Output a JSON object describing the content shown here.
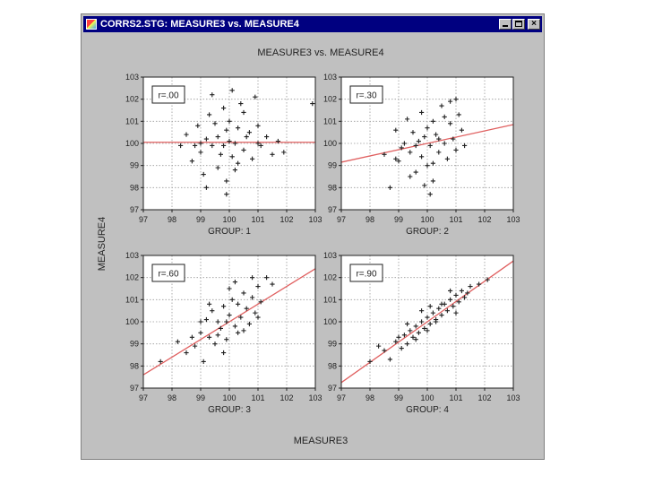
{
  "window": {
    "title": "CORRS2.STG: MEASURE3 vs. MEASURE4",
    "icon": "app-icon",
    "controls": [
      "minimize-icon",
      "maximize-icon",
      "close-icon"
    ]
  },
  "chart_data": {
    "type": "scatter",
    "title": "MEASURE3 vs. MEASURE4",
    "xlabel": "MEASURE3",
    "ylabel": "MEASURE4",
    "xlim": [
      97,
      103
    ],
    "ylim": [
      97,
      103
    ],
    "ticks": [
      "97",
      "98",
      "99",
      "100",
      "101",
      "102",
      "103"
    ],
    "grid": true,
    "marker": "plus",
    "point_color": "#222222",
    "fit_color": "#e06060",
    "panels": [
      {
        "label": "GROUP: 1",
        "r_label": "r=.00",
        "fit": [
          [
            97,
            100.05
          ],
          [
            103,
            100.05
          ]
        ],
        "points": [
          [
            98.5,
            100.4
          ],
          [
            98.7,
            99.2
          ],
          [
            98.9,
            100.8
          ],
          [
            99.0,
            99.6
          ],
          [
            99.1,
            98.6
          ],
          [
            99.2,
            100.2
          ],
          [
            99.3,
            101.3
          ],
          [
            99.4,
            99.9
          ],
          [
            99.5,
            100.9
          ],
          [
            99.6,
            98.9
          ],
          [
            99.6,
            100.3
          ],
          [
            99.7,
            99.5
          ],
          [
            99.8,
            101.6
          ],
          [
            99.8,
            99.9
          ],
          [
            99.9,
            100.6
          ],
          [
            99.9,
            98.3
          ],
          [
            100.0,
            100.1
          ],
          [
            100.0,
            101.0
          ],
          [
            100.1,
            99.4
          ],
          [
            100.1,
            102.4
          ],
          [
            100.2,
            100.0
          ],
          [
            100.3,
            99.1
          ],
          [
            100.3,
            100.7
          ],
          [
            100.4,
            101.8
          ],
          [
            100.5,
            99.7
          ],
          [
            100.6,
            100.3
          ],
          [
            100.7,
            100.5
          ],
          [
            100.8,
            99.3
          ],
          [
            101.0,
            100.8
          ],
          [
            101.1,
            99.9
          ],
          [
            101.3,
            100.3
          ],
          [
            101.5,
            99.5
          ],
          [
            101.7,
            100.1
          ],
          [
            101.9,
            99.6
          ],
          [
            98.3,
            99.9
          ],
          [
            99.2,
            98.0
          ],
          [
            99.9,
            97.7
          ],
          [
            100.5,
            101.4
          ],
          [
            100.9,
            102.1
          ],
          [
            99.4,
            102.2
          ],
          [
            98.8,
            99.9
          ],
          [
            100.2,
            98.8
          ],
          [
            102.9,
            101.8
          ],
          [
            101.0,
            100.0
          ],
          [
            99.0,
            100.0
          ]
        ]
      },
      {
        "label": "GROUP: 2",
        "r_label": "r=.30",
        "fit": [
          [
            97,
            99.15
          ],
          [
            103,
            100.85
          ]
        ],
        "points": [
          [
            98.5,
            99.5
          ],
          [
            98.7,
            98.0
          ],
          [
            98.9,
            100.6
          ],
          [
            99.0,
            99.2
          ],
          [
            99.2,
            100.0
          ],
          [
            99.3,
            101.1
          ],
          [
            99.4,
            99.6
          ],
          [
            99.5,
            100.5
          ],
          [
            99.6,
            98.7
          ],
          [
            99.7,
            100.1
          ],
          [
            99.8,
            99.4
          ],
          [
            99.8,
            101.4
          ],
          [
            99.9,
            100.3
          ],
          [
            100.0,
            99.0
          ],
          [
            100.0,
            100.7
          ],
          [
            100.1,
            99.9
          ],
          [
            100.2,
            101.0
          ],
          [
            100.2,
            98.3
          ],
          [
            100.3,
            100.4
          ],
          [
            100.4,
            99.6
          ],
          [
            100.5,
            101.7
          ],
          [
            100.6,
            100.0
          ],
          [
            100.7,
            99.3
          ],
          [
            100.8,
            100.9
          ],
          [
            100.9,
            100.2
          ],
          [
            101.0,
            99.7
          ],
          [
            101.1,
            101.3
          ],
          [
            101.2,
            100.6
          ],
          [
            101.3,
            99.9
          ],
          [
            100.6,
            101.2
          ],
          [
            99.1,
            99.8
          ],
          [
            99.6,
            99.9
          ],
          [
            100.4,
            100.2
          ],
          [
            100.1,
            97.7
          ],
          [
            99.9,
            98.1
          ],
          [
            100.8,
            101.9
          ],
          [
            99.4,
            98.5
          ],
          [
            101.0,
            102.0
          ],
          [
            98.9,
            99.3
          ],
          [
            100.2,
            99.1
          ]
        ]
      },
      {
        "label": "GROUP: 3",
        "r_label": "r=.60",
        "fit": [
          [
            97,
            97.6
          ],
          [
            103,
            102.4
          ]
        ],
        "points": [
          [
            97.6,
            98.2
          ],
          [
            98.2,
            99.1
          ],
          [
            98.5,
            98.6
          ],
          [
            98.8,
            98.9
          ],
          [
            99.0,
            99.5
          ],
          [
            99.1,
            98.2
          ],
          [
            99.2,
            100.1
          ],
          [
            99.3,
            99.3
          ],
          [
            99.4,
            100.5
          ],
          [
            99.5,
            99.0
          ],
          [
            99.6,
            100.0
          ],
          [
            99.7,
            99.7
          ],
          [
            99.8,
            100.7
          ],
          [
            99.9,
            99.2
          ],
          [
            100.0,
            100.3
          ],
          [
            100.1,
            101.0
          ],
          [
            100.2,
            99.8
          ],
          [
            100.3,
            100.8
          ],
          [
            100.4,
            100.2
          ],
          [
            100.5,
            101.3
          ],
          [
            100.6,
            100.6
          ],
          [
            100.7,
            99.9
          ],
          [
            100.8,
            101.1
          ],
          [
            100.9,
            100.4
          ],
          [
            101.0,
            101.6
          ],
          [
            101.1,
            100.9
          ],
          [
            101.3,
            102.0
          ],
          [
            101.5,
            101.7
          ],
          [
            99.8,
            98.6
          ],
          [
            100.5,
            99.6
          ],
          [
            99.0,
            100.0
          ],
          [
            100.0,
            101.5
          ],
          [
            98.7,
            99.3
          ],
          [
            100.2,
            101.8
          ],
          [
            99.6,
            99.4
          ],
          [
            101.0,
            100.2
          ],
          [
            99.3,
            100.8
          ],
          [
            100.8,
            102.0
          ],
          [
            99.9,
            100.0
          ],
          [
            100.3,
            99.5
          ]
        ]
      },
      {
        "label": "GROUP: 4",
        "r_label": "r=.90",
        "fit": [
          [
            97,
            97.25
          ],
          [
            103,
            102.75
          ]
        ],
        "points": [
          [
            98.0,
            98.2
          ],
          [
            98.5,
            98.7
          ],
          [
            98.9,
            99.1
          ],
          [
            99.1,
            98.8
          ],
          [
            99.2,
            99.4
          ],
          [
            99.3,
            99.0
          ],
          [
            99.4,
            99.6
          ],
          [
            99.5,
            99.3
          ],
          [
            99.6,
            99.8
          ],
          [
            99.7,
            99.5
          ],
          [
            99.8,
            100.0
          ],
          [
            99.9,
            99.7
          ],
          [
            100.0,
            100.2
          ],
          [
            100.1,
            99.9
          ],
          [
            100.2,
            100.4
          ],
          [
            100.3,
            100.1
          ],
          [
            100.4,
            100.6
          ],
          [
            100.5,
            100.3
          ],
          [
            100.6,
            100.8
          ],
          [
            100.7,
            100.5
          ],
          [
            100.8,
            101.0
          ],
          [
            100.9,
            100.7
          ],
          [
            101.0,
            101.2
          ],
          [
            101.1,
            100.9
          ],
          [
            101.2,
            101.4
          ],
          [
            101.3,
            101.1
          ],
          [
            101.5,
            101.6
          ],
          [
            101.8,
            101.7
          ],
          [
            102.1,
            101.9
          ],
          [
            98.7,
            98.3
          ],
          [
            99.0,
            99.3
          ],
          [
            99.6,
            99.2
          ],
          [
            100.0,
            99.6
          ],
          [
            100.5,
            100.8
          ],
          [
            101.0,
            100.4
          ],
          [
            99.3,
            99.9
          ],
          [
            100.8,
            101.4
          ],
          [
            99.8,
            100.5
          ],
          [
            100.3,
            100.0
          ],
          [
            101.4,
            101.3
          ],
          [
            98.3,
            98.9
          ],
          [
            100.1,
            100.7
          ]
        ]
      }
    ]
  }
}
